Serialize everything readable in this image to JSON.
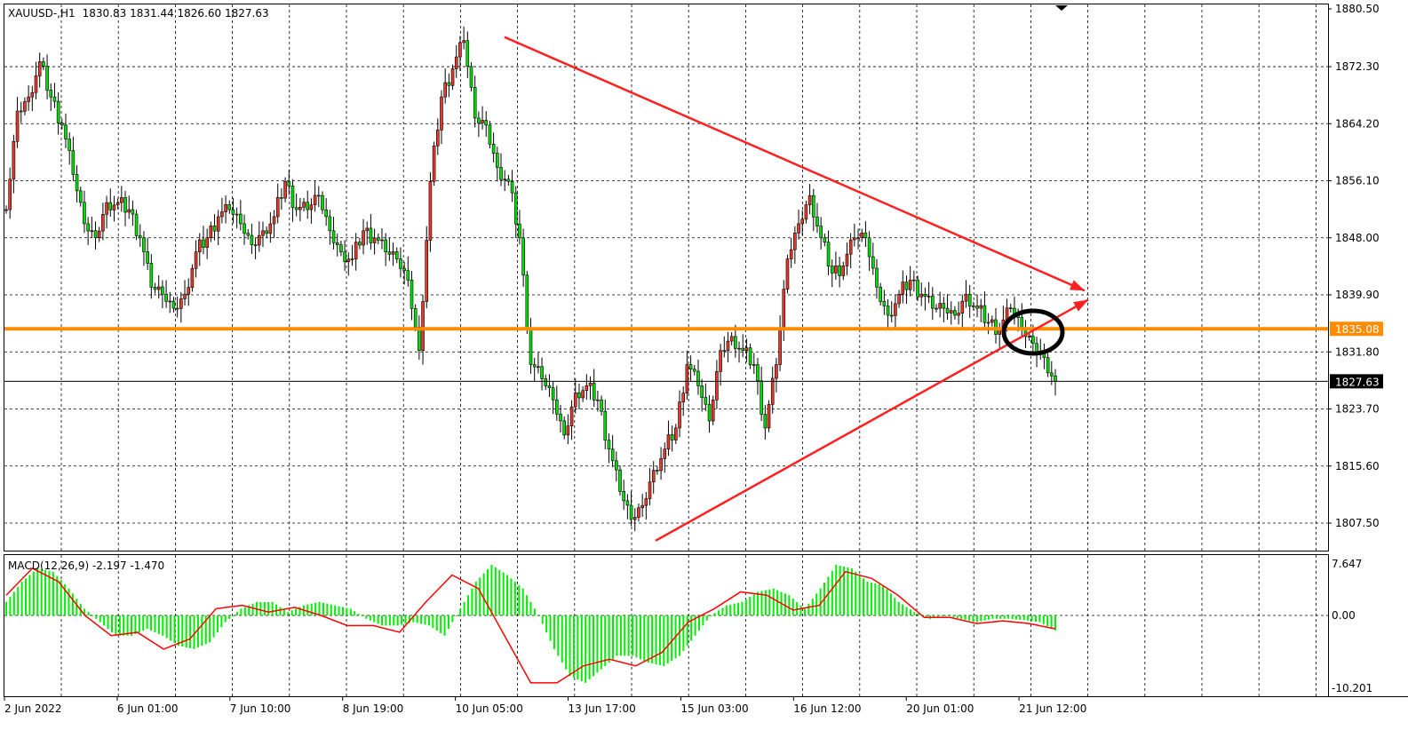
{
  "header": {
    "symbol_label": "XAUUSD-,H1",
    "ohlc": "1830.83 1831.44 1826.60 1827.63"
  },
  "indicator": {
    "label": "MACD(12,26,9) -2.197 -1.470"
  },
  "colors": {
    "bull_body": "#e8382a",
    "bear_body": "#00e000",
    "macd_histogram": "#00ee00",
    "signal_line": "#ff0000",
    "trendline": "#ff2020",
    "support_line": "#ff8c00",
    "current_price_line": "#000000",
    "annotation_ellipse": "#000000"
  },
  "chart_data": [
    {
      "type": "candlestick",
      "title": "XAUUSD-,H1",
      "ylim": [
        1801,
        1881.5
      ],
      "y_ticks": [
        "1880.50",
        "1872.30",
        "1864.20",
        "1856.10",
        "1848.00",
        "1839.90",
        "1831.80",
        "1823.70",
        "1815.60",
        "1807.50"
      ],
      "x_ticks": [
        "2 Jun 2022",
        "6 Jun 01:00",
        "7 Jun 10:00",
        "8 Jun 19:00",
        "10 Jun 05:00",
        "13 Jun 17:00",
        "15 Jun 03:00",
        "16 Jun 12:00",
        "20 Jun 01:00",
        "21 Jun 12:00"
      ],
      "grid": true,
      "closes_approx": [
        1852,
        1866,
        1868,
        1873,
        1868,
        1864,
        1857,
        1850,
        1848,
        1853,
        1853,
        1852,
        1848,
        1841,
        1840,
        1838,
        1840,
        1846,
        1848,
        1851,
        1852,
        1850,
        1847,
        1849,
        1851,
        1856,
        1852,
        1852,
        1854,
        1849,
        1846,
        1845,
        1849,
        1848,
        1846,
        1845,
        1842,
        1832,
        1856,
        1868,
        1872,
        1876,
        1865,
        1864,
        1858,
        1856,
        1848,
        1830,
        1828,
        1825,
        1820,
        1826,
        1827,
        1825,
        1818,
        1812,
        1808,
        1810,
        1815,
        1818,
        1821,
        1830,
        1827,
        1822,
        1832,
        1834,
        1832,
        1830,
        1821,
        1830,
        1845,
        1850,
        1854,
        1848,
        1843,
        1844,
        1848,
        1848,
        1841,
        1837,
        1840,
        1842,
        1840,
        1838,
        1838,
        1837,
        1840,
        1838,
        1836,
        1835,
        1838,
        1835,
        1833,
        1831,
        1827.63
      ],
      "horizontal_line": {
        "price": 1835.08,
        "label": "1835.08"
      },
      "current_price": {
        "price": 1827.63,
        "label": "1827.63"
      },
      "trendlines": [
        {
          "name": "upper-resistance",
          "from_price": 1876.5,
          "to_price": 1840.5
        },
        {
          "name": "lower-support",
          "from_price": 1805.0,
          "to_price": 1839.2
        }
      ]
    },
    {
      "type": "bar+line",
      "title": "MACD(12,26,9) -2.197 -1.470",
      "ylim": [
        -11,
        8.5
      ],
      "y_ticks": [
        "7.647",
        "0.00",
        "-10.201"
      ],
      "histogram_approx": [
        2,
        5,
        7,
        6.5,
        4,
        1,
        -1,
        -3,
        -3,
        -2,
        -3,
        -4.5,
        -5,
        -4,
        -1,
        1,
        2,
        2,
        0.5,
        1.5,
        2,
        1.5,
        1,
        -0.5,
        -1.5,
        -1.5,
        -1,
        -1.5,
        -3,
        1,
        5,
        7.5,
        6,
        4,
        0,
        -5,
        -9,
        -10,
        -8,
        -6,
        -6,
        -7,
        -7.5,
        -6,
        -3,
        0,
        1.5,
        2,
        3.5,
        4,
        3,
        1,
        4,
        7.5,
        7,
        5,
        4.5,
        2,
        0.5,
        -0.5,
        0,
        -0.5,
        -1,
        -0.5,
        -0.5,
        -0.7,
        -1,
        -2.2
      ],
      "signal_approx": [
        3,
        7,
        5,
        0,
        -3,
        -2.5,
        -5,
        -3.5,
        1,
        1.5,
        0.5,
        1.2,
        0,
        -1.5,
        -1.5,
        -2.5,
        2,
        6,
        4,
        -3,
        -10,
        -10,
        -7.5,
        -6.5,
        -7.5,
        -5.5,
        -1,
        1,
        3.5,
        3,
        0.8,
        1.5,
        6.5,
        5.5,
        3,
        -0.3,
        -0.3,
        -1.2,
        -0.8,
        -1.2,
        -2
      ]
    }
  ]
}
